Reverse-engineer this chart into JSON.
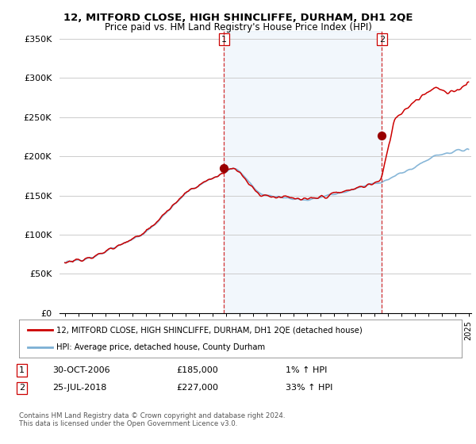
{
  "title": "12, MITFORD CLOSE, HIGH SHINCLIFFE, DURHAM, DH1 2QE",
  "subtitle": "Price paid vs. HM Land Registry's House Price Index (HPI)",
  "ylabel_ticks": [
    "£0",
    "£50K",
    "£100K",
    "£150K",
    "£200K",
    "£250K",
    "£300K",
    "£350K"
  ],
  "ytick_values": [
    0,
    50000,
    100000,
    150000,
    200000,
    250000,
    300000,
    350000
  ],
  "ylim": [
    0,
    360000
  ],
  "xlim_start": 1994.6,
  "xlim_end": 2025.2,
  "purchase1": {
    "date_num": 2006.83,
    "price": 185000,
    "label": "1"
  },
  "purchase2": {
    "date_num": 2018.56,
    "price": 227000,
    "label": "2"
  },
  "legend_line1": "12, MITFORD CLOSE, HIGH SHINCLIFFE, DURHAM, DH1 2QE (detached house)",
  "legend_line2": "HPI: Average price, detached house, County Durham",
  "note1_label": "1",
  "note1_date": "30-OCT-2006",
  "note1_price": "£185,000",
  "note1_hpi": "1% ↑ HPI",
  "note2_label": "2",
  "note2_date": "25-JUL-2018",
  "note2_price": "£227,000",
  "note2_hpi": "33% ↑ HPI",
  "footer": "Contains HM Land Registry data © Crown copyright and database right 2024.\nThis data is licensed under the Open Government Licence v3.0.",
  "hpi_color": "#7bafd4",
  "hpi_fill_color": "#ddeeff",
  "price_color": "#cc0000",
  "purchase_dot_color": "#990000",
  "vline_color": "#cc0000",
  "background_color": "#ffffff",
  "grid_color": "#cccccc"
}
